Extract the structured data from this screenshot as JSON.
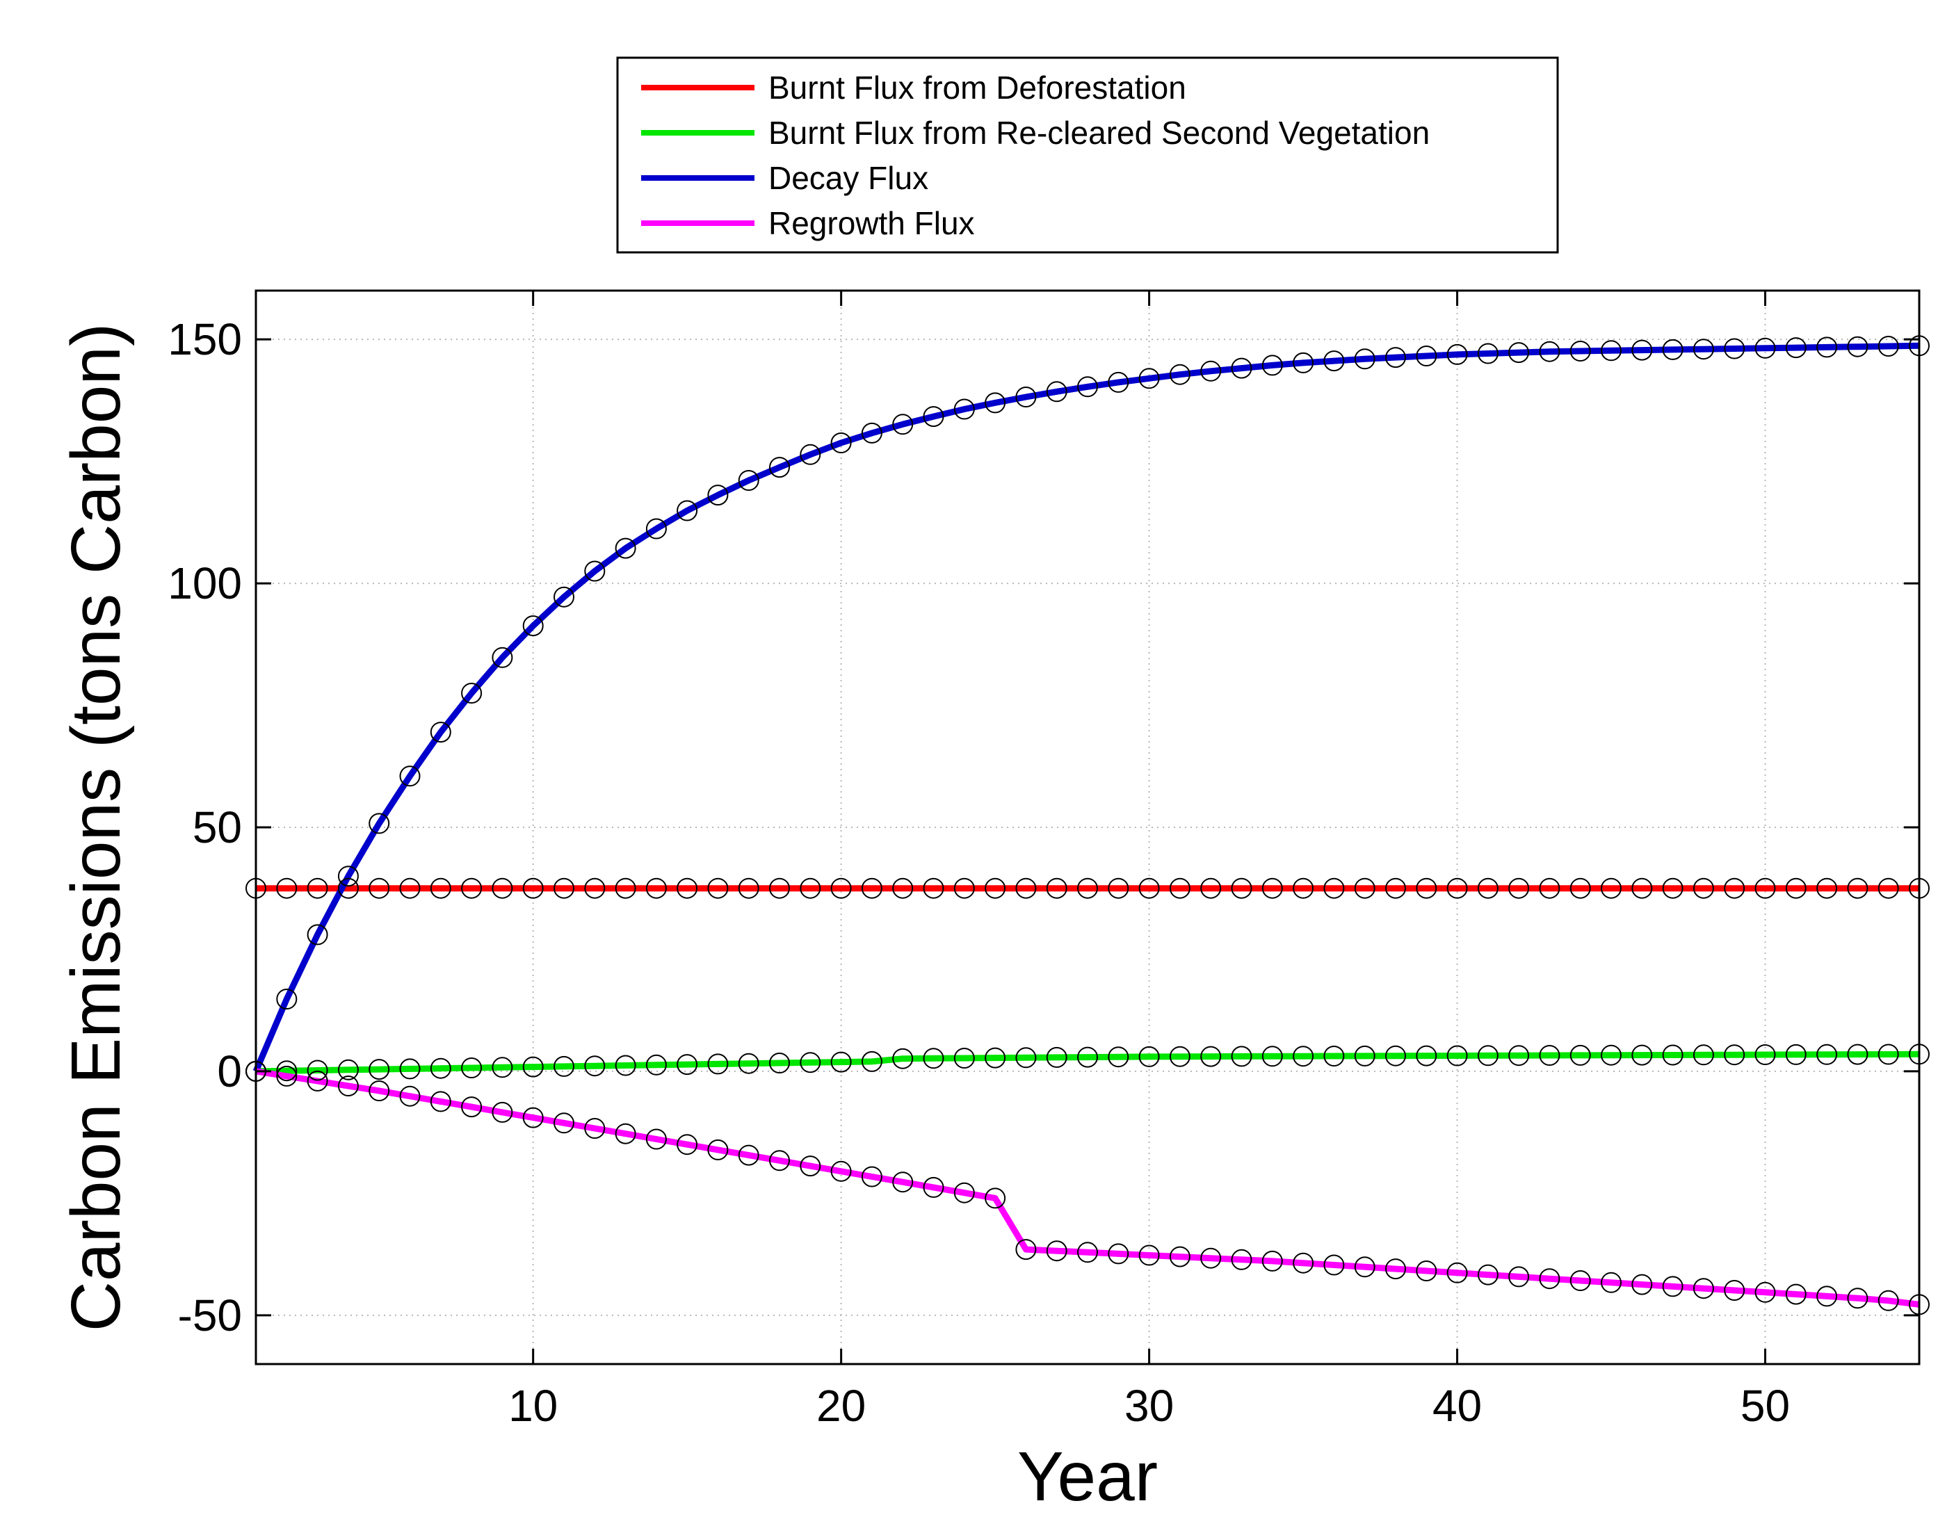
{
  "chart_data": {
    "type": "line",
    "title": "",
    "xlabel": "Year",
    "ylabel": "Carbon Emissions (tons Carbon)",
    "xlim": [
      1,
      55
    ],
    "ylim": [
      -60,
      160
    ],
    "xticks": [
      10,
      20,
      30,
      40,
      50
    ],
    "yticks": [
      -50,
      0,
      50,
      100,
      150
    ],
    "xtick_labels": [
      "10",
      "20",
      "30",
      "40",
      "50"
    ],
    "ytick_labels": [
      "-50",
      "0",
      "50",
      "100",
      "150"
    ],
    "grid": true,
    "legend_position": "top-center (outside axes)",
    "x": [
      1,
      2,
      3,
      4,
      5,
      6,
      7,
      8,
      9,
      10,
      11,
      12,
      13,
      14,
      15,
      16,
      17,
      18,
      19,
      20,
      21,
      22,
      23,
      24,
      25,
      26,
      27,
      28,
      29,
      30,
      31,
      32,
      33,
      34,
      35,
      36,
      37,
      38,
      39,
      40,
      41,
      42,
      43,
      44,
      45,
      46,
      47,
      48,
      49,
      50,
      51,
      52,
      53,
      54,
      55
    ],
    "series": [
      {
        "name": "Burnt Flux from Deforestation",
        "color": "#ff0000",
        "values": [
          37.5,
          37.5,
          37.5,
          37.5,
          37.5,
          37.5,
          37.5,
          37.5,
          37.5,
          37.5,
          37.5,
          37.5,
          37.5,
          37.5,
          37.5,
          37.5,
          37.5,
          37.5,
          37.5,
          37.5,
          37.5,
          37.5,
          37.5,
          37.5,
          37.5,
          37.5,
          37.5,
          37.5,
          37.5,
          37.5,
          37.5,
          37.5,
          37.5,
          37.5,
          37.5,
          37.5,
          37.5,
          37.5,
          37.5,
          37.5,
          37.5,
          37.5,
          37.5,
          37.5,
          37.5,
          37.5,
          37.5,
          37.5,
          37.5,
          37.5,
          37.5,
          37.5,
          37.5,
          37.5,
          37.5
        ]
      },
      {
        "name": "Burnt Flux from Re-cleared Second Vegetation",
        "color": "#00e600",
        "values": [
          0,
          0.1,
          0.2,
          0.3,
          0.4,
          0.5,
          0.6,
          0.7,
          0.8,
          0.9,
          1.0,
          1.1,
          1.2,
          1.3,
          1.4,
          1.5,
          1.6,
          1.7,
          1.8,
          1.9,
          2.0,
          2.6,
          2.65,
          2.7,
          2.75,
          2.8,
          2.85,
          2.9,
          2.95,
          3.0,
          3.02,
          3.04,
          3.06,
          3.08,
          3.1,
          3.12,
          3.14,
          3.16,
          3.18,
          3.2,
          3.22,
          3.24,
          3.26,
          3.28,
          3.3,
          3.32,
          3.34,
          3.36,
          3.38,
          3.4,
          3.42,
          3.44,
          3.46,
          3.48,
          3.5
        ]
      },
      {
        "name": "Decay Flux",
        "color": "#0000cc",
        "values": [
          0,
          14.8,
          28.0,
          40.0,
          50.8,
          60.5,
          69.5,
          77.5,
          84.8,
          91.3,
          97.2,
          102.5,
          107.2,
          111.2,
          114.9,
          118.1,
          121.1,
          123.8,
          126.4,
          128.8,
          130.8,
          132.6,
          134.2,
          135.7,
          137.0,
          138.2,
          139.3,
          140.3,
          141.2,
          142.0,
          142.8,
          143.5,
          144.1,
          144.7,
          145.2,
          145.6,
          146.0,
          146.3,
          146.6,
          146.9,
          147.1,
          147.3,
          147.5,
          147.6,
          147.7,
          147.8,
          147.9,
          148.0,
          148.1,
          148.2,
          148.3,
          148.4,
          148.5,
          148.6,
          148.7
        ]
      },
      {
        "name": "Regrowth Flux",
        "color": "#ff00ff",
        "values": [
          0,
          -1.0,
          -2.0,
          -3.0,
          -4.0,
          -5.1,
          -6.2,
          -7.3,
          -8.4,
          -9.5,
          -10.6,
          -11.7,
          -12.8,
          -13.9,
          -15.0,
          -16.1,
          -17.2,
          -18.3,
          -19.4,
          -20.5,
          -21.6,
          -22.7,
          -23.8,
          -24.9,
          -26.0,
          -36.5,
          -36.8,
          -37.1,
          -37.4,
          -37.7,
          -38.0,
          -38.3,
          -38.6,
          -38.9,
          -39.3,
          -39.7,
          -40.1,
          -40.5,
          -40.9,
          -41.3,
          -41.7,
          -42.1,
          -42.5,
          -42.9,
          -43.3,
          -43.7,
          -44.1,
          -44.5,
          -44.9,
          -45.3,
          -45.7,
          -46.1,
          -46.5,
          -47.0,
          -47.8
        ]
      }
    ]
  }
}
